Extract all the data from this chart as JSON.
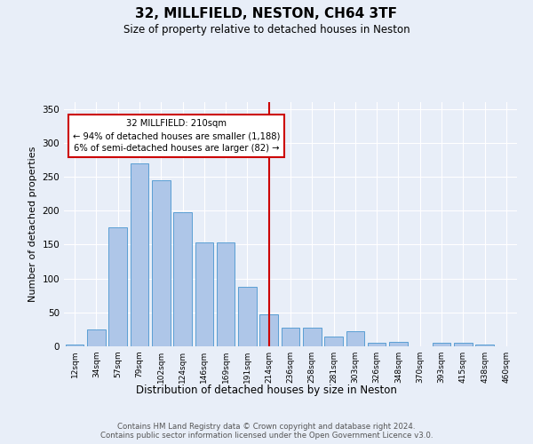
{
  "title": "32, MILLFIELD, NESTON, CH64 3TF",
  "subtitle": "Size of property relative to detached houses in Neston",
  "xlabel": "Distribution of detached houses by size in Neston",
  "ylabel": "Number of detached properties",
  "bar_labels": [
    "12sqm",
    "34sqm",
    "57sqm",
    "79sqm",
    "102sqm",
    "124sqm",
    "146sqm",
    "169sqm",
    "191sqm",
    "214sqm",
    "236sqm",
    "258sqm",
    "281sqm",
    "303sqm",
    "326sqm",
    "348sqm",
    "370sqm",
    "393sqm",
    "415sqm",
    "438sqm",
    "460sqm"
  ],
  "bar_values": [
    2,
    25,
    175,
    270,
    245,
    198,
    153,
    153,
    88,
    47,
    27,
    27,
    15,
    22,
    5,
    7,
    0,
    5,
    5,
    2,
    0
  ],
  "bar_color": "#aec6e8",
  "bar_edge_color": "#5a9fd4",
  "vline_x_index": 9,
  "vline_color": "#cc0000",
  "annotation_title": "32 MILLFIELD: 210sqm",
  "annotation_line1": "← 94% of detached houses are smaller (1,188)",
  "annotation_line2": "6% of semi-detached houses are larger (82) →",
  "annotation_box_color": "#cc0000",
  "ylim": [
    0,
    360
  ],
  "yticks": [
    0,
    50,
    100,
    150,
    200,
    250,
    300,
    350
  ],
  "background_color": "#e8eef8",
  "footer_line1": "Contains HM Land Registry data © Crown copyright and database right 2024.",
  "footer_line2": "Contains public sector information licensed under the Open Government Licence v3.0."
}
